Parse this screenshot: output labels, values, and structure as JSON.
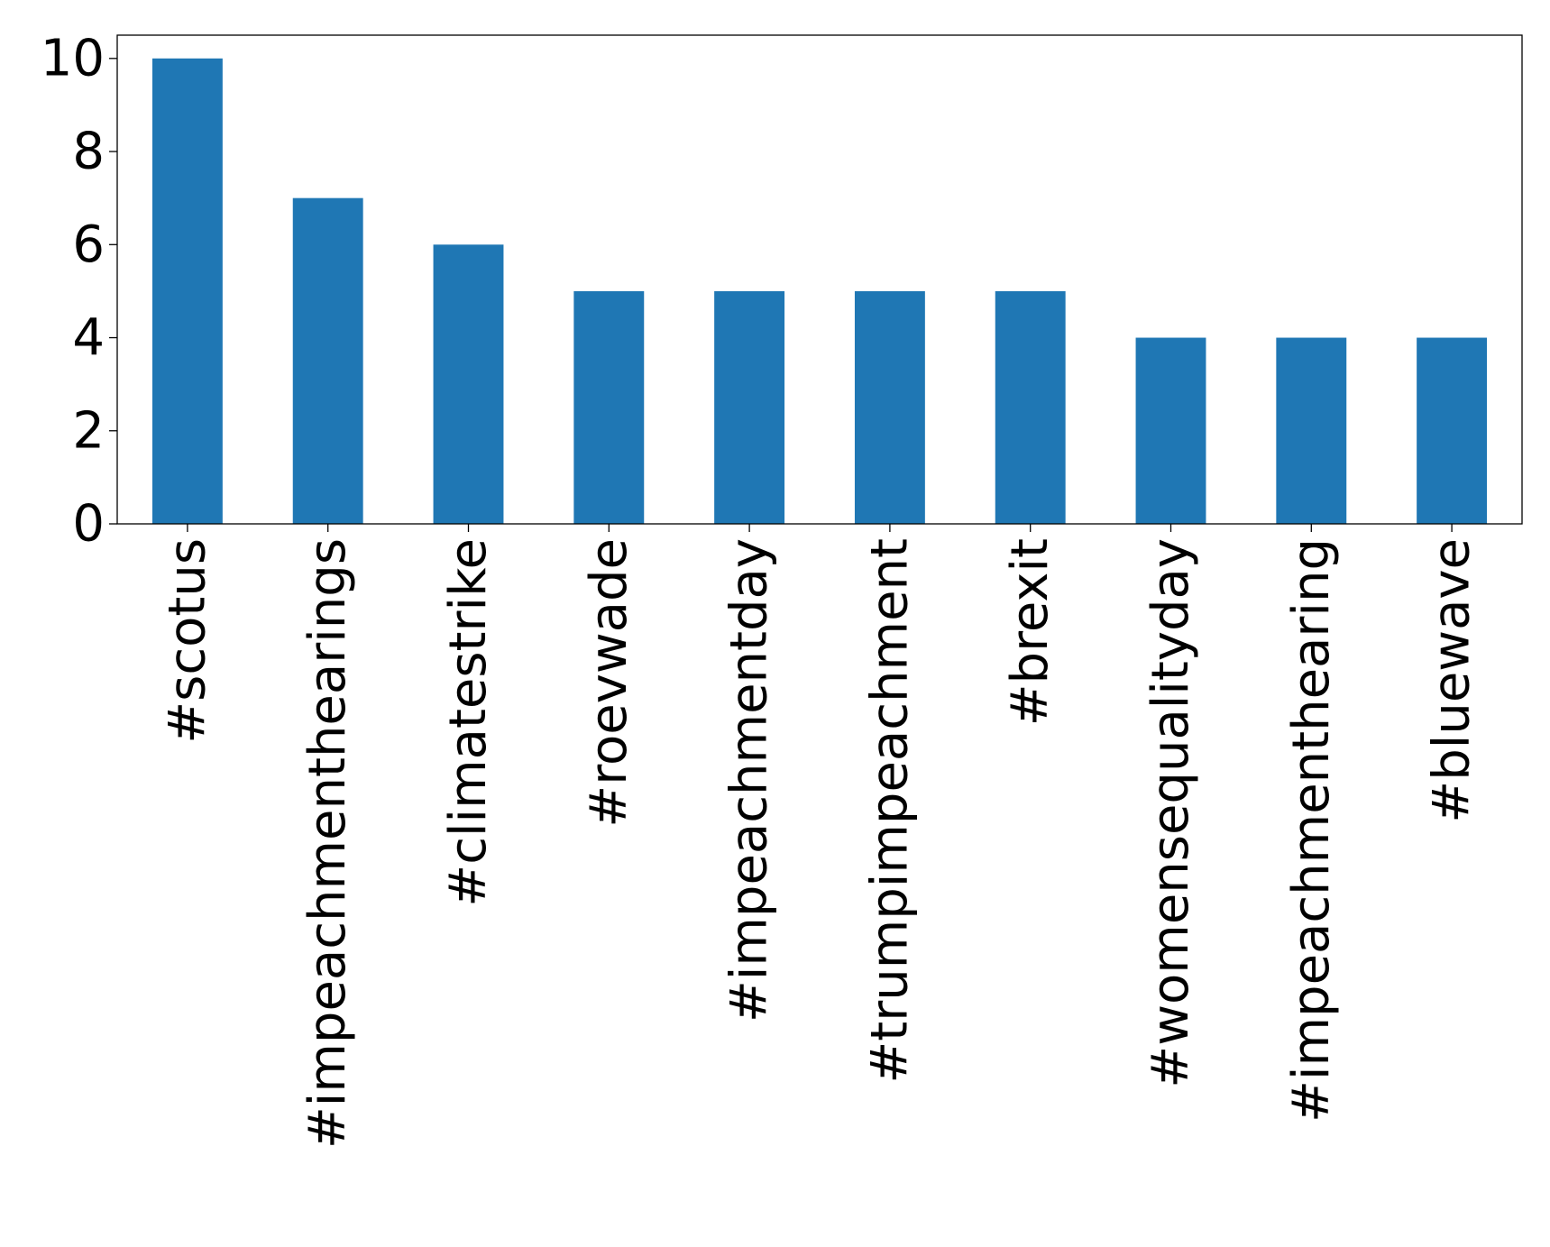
{
  "chart_data": {
    "type": "bar",
    "categories": [
      "#scotus",
      "#impeachmenthearings",
      "#climatestrike",
      "#roevwade",
      "#impeachmentday",
      "#trumpimpeachment",
      "#brexit",
      "#womensequalityday",
      "#impeachmenthearing",
      "#bluewave"
    ],
    "values": [
      10,
      7,
      6,
      5,
      5,
      5,
      5,
      4,
      4,
      4
    ],
    "ylim": [
      0,
      10.5
    ],
    "yticks": [
      0,
      2,
      4,
      6,
      8,
      10
    ],
    "grid": false,
    "legend": "none",
    "bar_color": "#1f77b4",
    "title": "",
    "xlabel": "",
    "ylabel": ""
  }
}
